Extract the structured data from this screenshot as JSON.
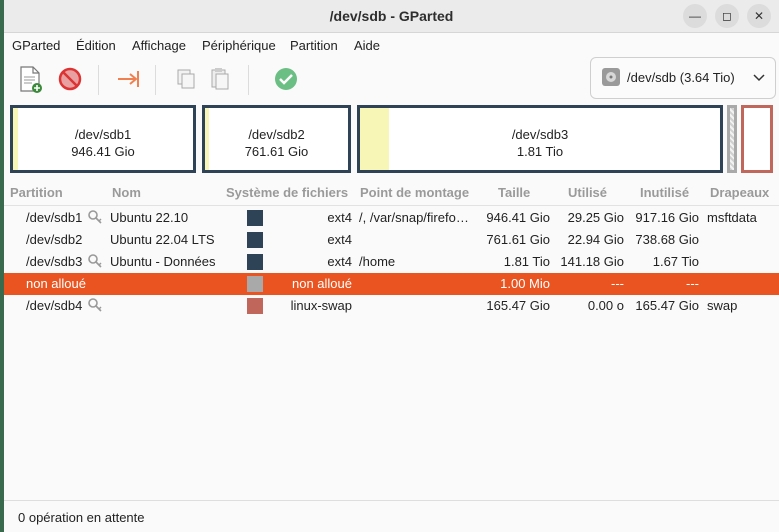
{
  "window": {
    "title": "/dev/sdb - GParted"
  },
  "menubar": {
    "items": [
      "GParted",
      "Édition",
      "Affichage",
      "Périphérique",
      "Partition",
      "Aide"
    ]
  },
  "toolbar": {
    "icons": [
      "new-partition-icon",
      "delete-partition-icon",
      "resize-move-icon",
      "copy-icon",
      "paste-icon",
      "apply-icon"
    ],
    "device_label": "/dev/sdb (3.64 Tio)"
  },
  "diskmap": {
    "partitions": [
      {
        "name": "/dev/sdb1",
        "size": "946.41 Gio",
        "used_fraction": 0.03,
        "fs_color": "#2f4356"
      },
      {
        "name": "/dev/sdb2",
        "size": "761.61 Gio",
        "used_fraction": 0.03,
        "fs_color": "#2f4356"
      },
      {
        "name": "/dev/sdb3",
        "size": "1.81 Tio",
        "used_fraction": 0.08,
        "fs_color": "#2f4356"
      },
      {
        "name": "",
        "size": "",
        "used_fraction": 0.0,
        "fs_color": "#a9a9a9"
      },
      {
        "name": "",
        "size": "",
        "used_fraction": 0.0,
        "fs_color": "#c1665a"
      }
    ]
  },
  "table": {
    "headers": [
      "Partition",
      "Nom",
      "Système de fichiers",
      "Point de montage",
      "Taille",
      "Utilisé",
      "Inutilisé",
      "Drapeaux"
    ],
    "rows": [
      {
        "partition": "/dev/sdb1",
        "key": true,
        "name": "Ubuntu 22.10",
        "fs": "ext4",
        "fs_color": "#2f4356",
        "mount": "/, /var/snap/firefo…",
        "size": "946.41 Gio",
        "used": "29.25 Gio",
        "unused": "917.16 Gio",
        "flags": "msftdata",
        "selected": false
      },
      {
        "partition": "/dev/sdb2",
        "key": false,
        "name": "Ubuntu 22.04 LTS",
        "fs": "ext4",
        "fs_color": "#2f4356",
        "mount": "",
        "size": "761.61 Gio",
        "used": "22.94 Gio",
        "unused": "738.68 Gio",
        "flags": "",
        "selected": false
      },
      {
        "partition": "/dev/sdb3",
        "key": true,
        "name": "Ubuntu - Données",
        "fs": "ext4",
        "fs_color": "#2f4356",
        "mount": "/home",
        "size": "1.81 Tio",
        "used": "141.18 Gio",
        "unused": "1.67 Tio",
        "flags": "",
        "selected": false
      },
      {
        "partition": "non alloué",
        "key": false,
        "name": "",
        "fs": "non alloué",
        "fs_color": "#a9a9a9",
        "mount": "",
        "size": "1.00 Mio",
        "used": "---",
        "unused": "---",
        "flags": "",
        "selected": true
      },
      {
        "partition": "/dev/sdb4",
        "key": true,
        "name": "",
        "fs": "linux-swap",
        "fs_color": "#c1665a",
        "mount": "",
        "size": "165.47 Gio",
        "used": "0.00 o",
        "unused": "165.47 Gio",
        "flags": "swap",
        "selected": false
      }
    ]
  },
  "statusbar": {
    "text": "0 opération en attente"
  },
  "colors": {
    "accent": "#e95420",
    "ext4": "#2f4356",
    "unallocated": "#a9a9a9",
    "swap": "#c1665a",
    "used": "#f7f6b7"
  }
}
